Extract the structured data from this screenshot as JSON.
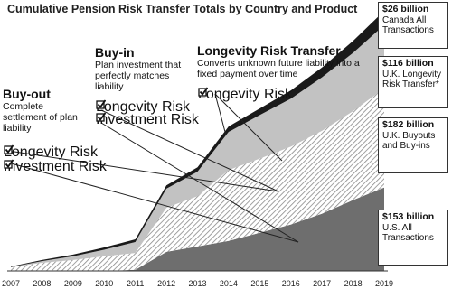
{
  "chart_data": {
    "type": "stacked-area",
    "title": "Cumulative Pension Risk Transfer Totals by Country and Product",
    "categories": [
      "2007",
      "2008",
      "2009",
      "2010",
      "2011",
      "2012",
      "2013",
      "2014",
      "2015",
      "2016",
      "2017",
      "2018",
      "2019"
    ],
    "series": [
      {
        "name": "U.S. All Transactions",
        "color": "#6e6e6e",
        "values": [
          0,
          0,
          0,
          0,
          2,
          35,
          45,
          55,
          70,
          85,
          105,
          130,
          153
        ],
        "value_labels": [
          null,
          null,
          null,
          null,
          null,
          null,
          null,
          null,
          null,
          null,
          null,
          null,
          "$153 billion"
        ]
      },
      {
        "name": "U.K. Buyouts and Buy-ins",
        "color": "#888888",
        "hatch": true,
        "values": [
          7,
          15,
          20,
          27,
          31,
          81,
          92,
          130,
          136,
          143,
          152,
          163,
          182
        ],
        "value_labels": [
          null,
          null,
          null,
          null,
          null,
          null,
          null,
          null,
          null,
          null,
          null,
          null,
          "$182 billion"
        ]
      },
      {
        "name": "U.K. Longevity Risk Transfer*",
        "color": "#c2c2c2",
        "values": [
          0,
          3,
          7,
          12,
          20,
          35,
          45,
          70,
          80,
          88,
          98,
          107,
          116
        ],
        "value_labels": [
          null,
          null,
          null,
          null,
          null,
          null,
          null,
          null,
          null,
          null,
          null,
          null,
          "$116 billion"
        ]
      },
      {
        "name": "Canada All Transactions",
        "color": "#1a1a1a",
        "values": [
          1,
          2,
          3,
          4,
          5,
          6,
          8,
          10,
          12,
          15,
          18,
          22,
          26
        ],
        "value_labels": [
          null,
          null,
          null,
          null,
          null,
          null,
          null,
          null,
          null,
          null,
          null,
          null,
          "$26 billion"
        ]
      }
    ],
    "annotations": [
      {
        "title": "Buy-out",
        "description": "Complete settlement of plan liability",
        "items": [
          "Longevity Risk",
          "Investment Risk"
        ]
      },
      {
        "title": "Buy-in",
        "description": "Plan investment that perfectly matches liability",
        "items": [
          "Longevity Risk",
          "Investment Risk"
        ]
      },
      {
        "title": "Longevity Risk Transfer",
        "description": "Converts unknown future liability into a fixed payment over time",
        "items": [
          "Longevity Risk"
        ]
      }
    ]
  }
}
